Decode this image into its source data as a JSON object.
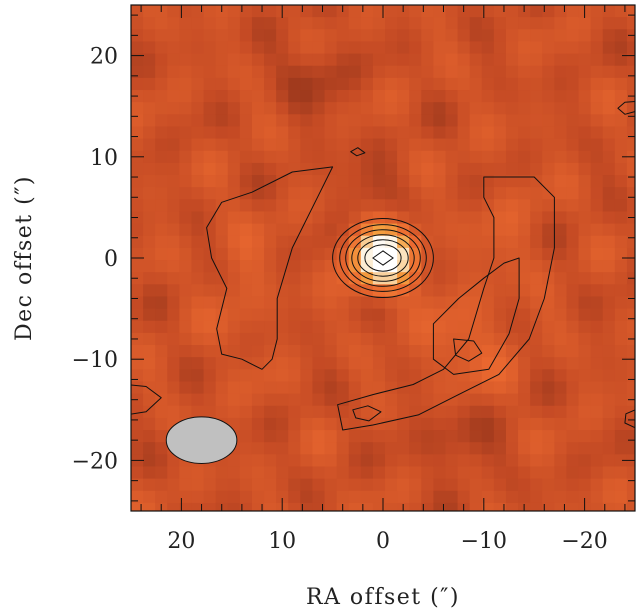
{
  "chart_data": {
    "type": "heatmap",
    "title": "",
    "xlabel": "RA offset (″)",
    "ylabel": "Dec offset (″)",
    "xlim": [
      25,
      -25
    ],
    "ylim": [
      -25,
      25
    ],
    "x_ticks": [
      20,
      10,
      0,
      -10,
      -20
    ],
    "x_tick_labels": [
      "20",
      "10",
      "0",
      "−10",
      "−20"
    ],
    "y_ticks": [
      20,
      10,
      0,
      -10,
      -20
    ],
    "y_tick_labels": [
      "20",
      "10",
      "0",
      "−10",
      "−20"
    ],
    "colormap": [
      "#5a1a10",
      "#c44a24",
      "#ec6a30",
      "#f5a040",
      "#fbe7c6",
      "#ffffff"
    ],
    "contour_color": "#111111",
    "peak": {
      "x": 0,
      "y": 0
    },
    "secondary_peak": {
      "x": -8,
      "y": -9
    },
    "beam": {
      "x": 18,
      "y": -18,
      "major": 7,
      "minor": 4.6,
      "fill": "#c0c0c0"
    }
  }
}
